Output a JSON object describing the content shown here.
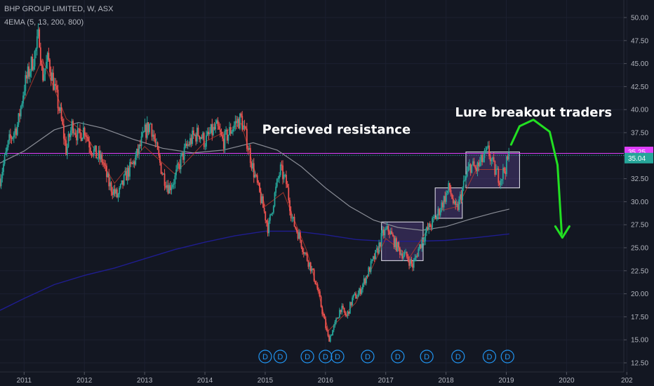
{
  "header": {
    "title": "BHP GROUP LIMITED, W, ASX",
    "indicator": "4EMA (5, 13, 200, 800)"
  },
  "colors": {
    "background": "#131722",
    "up_candle": "#26a69a",
    "down_candle": "#ef5350",
    "ema_200": "#8a8d96",
    "ema_800": "#1f1d8f",
    "ema_fast": "#c0392b",
    "resistance_line": "#e040fb",
    "arrow": "#22e022",
    "box_fill": "#7e57c2",
    "box_stroke": "#e8e8f0",
    "dividend_marker": "#2196f3"
  },
  "chart_data": {
    "type": "candlestick",
    "timeframe": "W",
    "x_tick_labels": [
      "2011",
      "2012",
      "2013",
      "2014",
      "2015",
      "2016",
      "2017",
      "2018",
      "2019",
      "2020",
      "202"
    ],
    "y_tick_labels": [
      "50.00",
      "47.50",
      "45.00",
      "42.50",
      "40.00",
      "37.50",
      "35.00",
      "32.50",
      "30.00",
      "27.50",
      "25.00",
      "22.50",
      "20.00",
      "17.50",
      "15.00",
      "12.50"
    ],
    "ylim": [
      12.5,
      50
    ],
    "price_path": [
      [
        2010.6,
        32.5
      ],
      [
        2010.75,
        36.5
      ],
      [
        2010.9,
        38.5
      ],
      [
        2011.0,
        42.5
      ],
      [
        2011.1,
        44.5
      ],
      [
        2011.2,
        46.5
      ],
      [
        2011.25,
        48.3
      ],
      [
        2011.3,
        43.5
      ],
      [
        2011.4,
        45.5
      ],
      [
        2011.5,
        42.5
      ],
      [
        2011.6,
        39.5
      ],
      [
        2011.7,
        35.5
      ],
      [
        2011.8,
        38.5
      ],
      [
        2011.9,
        37.0
      ],
      [
        2012.0,
        38.0
      ],
      [
        2012.1,
        36.0
      ],
      [
        2012.2,
        35.0
      ],
      [
        2012.3,
        34.5
      ],
      [
        2012.4,
        32.0
      ],
      [
        2012.5,
        31.0
      ],
      [
        2012.55,
        30.5
      ],
      [
        2012.7,
        33.0
      ],
      [
        2012.8,
        34.0
      ],
      [
        2012.9,
        35.5
      ],
      [
        2013.0,
        37.5
      ],
      [
        2013.1,
        38.5
      ],
      [
        2013.2,
        35.5
      ],
      [
        2013.3,
        33.0
      ],
      [
        2013.4,
        31.5
      ],
      [
        2013.5,
        32.5
      ],
      [
        2013.6,
        34.5
      ],
      [
        2013.7,
        36.0
      ],
      [
        2013.8,
        37.0
      ],
      [
        2013.9,
        37.5
      ],
      [
        2014.0,
        36.5
      ],
      [
        2014.1,
        37.5
      ],
      [
        2014.2,
        38.0
      ],
      [
        2014.3,
        36.5
      ],
      [
        2014.4,
        37.5
      ],
      [
        2014.5,
        38.5
      ],
      [
        2014.6,
        39.0
      ],
      [
        2014.7,
        36.5
      ],
      [
        2014.8,
        33.5
      ],
      [
        2014.9,
        31.0
      ],
      [
        2015.0,
        28.5
      ],
      [
        2015.05,
        27.0
      ],
      [
        2015.15,
        30.5
      ],
      [
        2015.25,
        33.5
      ],
      [
        2015.35,
        32.0
      ],
      [
        2015.45,
        28.0
      ],
      [
        2015.55,
        26.5
      ],
      [
        2015.65,
        24.5
      ],
      [
        2015.75,
        23.0
      ],
      [
        2015.85,
        21.0
      ],
      [
        2015.95,
        18.0
      ],
      [
        2016.05,
        15.0
      ],
      [
        2016.15,
        16.5
      ],
      [
        2016.25,
        18.5
      ],
      [
        2016.35,
        17.5
      ],
      [
        2016.45,
        19.5
      ],
      [
        2016.55,
        20.0
      ],
      [
        2016.65,
        21.5
      ],
      [
        2016.75,
        23.0
      ],
      [
        2016.85,
        24.5
      ],
      [
        2016.95,
        26.5
      ],
      [
        2017.05,
        27.0
      ],
      [
        2017.15,
        25.5
      ],
      [
        2017.25,
        24.5
      ],
      [
        2017.35,
        24.0
      ],
      [
        2017.45,
        23.0
      ],
      [
        2017.55,
        25.0
      ],
      [
        2017.65,
        26.5
      ],
      [
        2017.75,
        27.5
      ],
      [
        2017.85,
        28.5
      ],
      [
        2017.95,
        30.0
      ],
      [
        2018.05,
        31.5
      ],
      [
        2018.1,
        30.5
      ],
      [
        2018.15,
        29.0
      ],
      [
        2018.2,
        29.5
      ],
      [
        2018.3,
        32.0
      ],
      [
        2018.4,
        34.0
      ],
      [
        2018.5,
        33.5
      ],
      [
        2018.6,
        34.5
      ],
      [
        2018.7,
        35.5
      ],
      [
        2018.8,
        33.5
      ],
      [
        2018.9,
        32.5
      ],
      [
        2019.0,
        34.0
      ],
      [
        2019.05,
        35.0
      ]
    ],
    "ema_200_path": [
      [
        2010.6,
        34.2
      ],
      [
        2011.0,
        35.5
      ],
      [
        2011.5,
        37.8
      ],
      [
        2011.9,
        38.6
      ],
      [
        2012.3,
        38.0
      ],
      [
        2012.8,
        36.8
      ],
      [
        2013.3,
        35.8
      ],
      [
        2013.8,
        35.3
      ],
      [
        2014.3,
        35.6
      ],
      [
        2014.8,
        36.4
      ],
      [
        2015.2,
        35.6
      ],
      [
        2015.6,
        33.8
      ],
      [
        2016.0,
        31.5
      ],
      [
        2016.4,
        29.5
      ],
      [
        2016.8,
        28.0
      ],
      [
        2017.2,
        27.2
      ],
      [
        2017.6,
        26.9
      ],
      [
        2018.0,
        27.3
      ],
      [
        2018.4,
        28.1
      ],
      [
        2018.8,
        28.8
      ],
      [
        2019.05,
        29.2
      ]
    ],
    "ema_800_path": [
      [
        2010.6,
        18.2
      ],
      [
        2011.0,
        19.5
      ],
      [
        2011.5,
        21.0
      ],
      [
        2012.0,
        22.0
      ],
      [
        2012.5,
        22.8
      ],
      [
        2013.0,
        23.8
      ],
      [
        2013.5,
        24.8
      ],
      [
        2014.0,
        25.6
      ],
      [
        2014.5,
        26.3
      ],
      [
        2015.0,
        26.8
      ],
      [
        2015.5,
        26.8
      ],
      [
        2016.0,
        26.4
      ],
      [
        2016.5,
        25.9
      ],
      [
        2017.0,
        25.7
      ],
      [
        2017.5,
        25.7
      ],
      [
        2018.0,
        25.8
      ],
      [
        2018.5,
        26.1
      ],
      [
        2019.05,
        26.5
      ]
    ],
    "ema_fast_path": [
      [
        2011.0,
        41.0
      ],
      [
        2011.3,
        45.5
      ],
      [
        2011.7,
        39.0
      ],
      [
        2012.0,
        37.5
      ],
      [
        2012.5,
        32.0
      ],
      [
        2013.0,
        36.0
      ],
      [
        2013.5,
        33.0
      ],
      [
        2014.0,
        36.5
      ],
      [
        2014.6,
        38.5
      ],
      [
        2015.0,
        29.5
      ],
      [
        2015.3,
        31.0
      ],
      [
        2015.7,
        24.5
      ],
      [
        2016.05,
        16.0
      ],
      [
        2016.5,
        19.0
      ],
      [
        2017.0,
        26.0
      ],
      [
        2017.4,
        24.0
      ],
      [
        2017.9,
        29.0
      ],
      [
        2018.2,
        29.5
      ],
      [
        2018.5,
        33.5
      ],
      [
        2019.0,
        33.5
      ]
    ],
    "resistance_level": 35.25,
    "price_tags": [
      {
        "label": "35.25",
        "value": 35.25,
        "color": "#e040fb"
      },
      {
        "label": "35.04",
        "value": 35.04,
        "color": "#26a69a"
      }
    ],
    "boxes": [
      {
        "x0": 2016.93,
        "x1": 2017.62,
        "y0": 23.6,
        "y1": 27.8
      },
      {
        "x0": 2017.82,
        "x1": 2018.27,
        "y0": 28.2,
        "y1": 31.5
      },
      {
        "x0": 2018.33,
        "x1": 2019.22,
        "y0": 31.5,
        "y1": 35.4
      }
    ],
    "dividend_marker_label": "D",
    "dividend_markers": [
      2015.0,
      2015.25,
      2015.7,
      2016.0,
      2016.2,
      2016.7,
      2017.2,
      2017.68,
      2018.2,
      2018.72,
      2019.02
    ],
    "annotations": [
      {
        "text": "Percieved resistance",
        "x": 2014.95,
        "y": 37.85
      },
      {
        "text": "Lure breakout traders",
        "x": 2018.15,
        "y": 39.7
      }
    ],
    "arrow_path": [
      [
        2019.08,
        36.2
      ],
      [
        2019.22,
        38.2
      ],
      [
        2019.45,
        38.9
      ],
      [
        2019.72,
        37.6
      ],
      [
        2019.85,
        34.0
      ],
      [
        2019.92,
        26.5
      ]
    ],
    "arrow_tip": [
      2019.93,
      26.1
    ]
  }
}
